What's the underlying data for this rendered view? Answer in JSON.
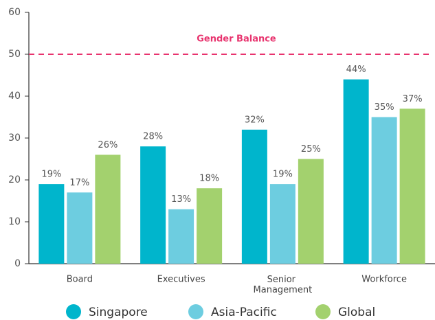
{
  "chart_data": {
    "type": "bar",
    "categories": [
      "Board",
      "Executives",
      "Senior Management",
      "Workforce"
    ],
    "series": [
      {
        "name": "Singapore",
        "color": "#00b5cc",
        "values": [
          19,
          28,
          32,
          44
        ],
        "value_labels": [
          "19%",
          "28%",
          "32%",
          "44%"
        ]
      },
      {
        "name": "Asia-Pacific",
        "color": "#6dcde0",
        "values": [
          17,
          13,
          19,
          35
        ],
        "value_labels": [
          "17%",
          "13%",
          "19%",
          "35%"
        ]
      },
      {
        "name": "Global",
        "color": "#a3d16e",
        "values": [
          26,
          18,
          25,
          37
        ],
        "value_labels": [
          "26%",
          "18%",
          "25%",
          "37%"
        ]
      }
    ],
    "ylim": [
      0,
      60
    ],
    "yticks": [
      0,
      10,
      20,
      30,
      40,
      50,
      60
    ],
    "reference_line": {
      "value": 50,
      "label": "Gender Balance",
      "color": "#e8336e"
    },
    "legend": "bottom"
  }
}
